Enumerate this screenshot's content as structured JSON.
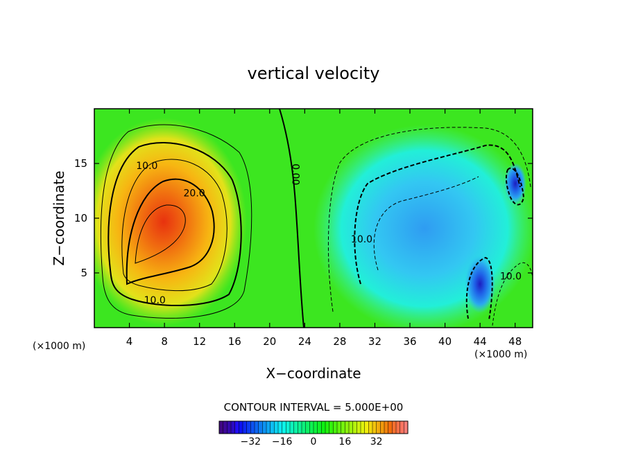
{
  "chart_data": {
    "type": "contour",
    "title": "vertical velocity",
    "xlabel": "X−coordinate",
    "ylabel": "Z−coordinate",
    "x_unit": "(×1000 m)",
    "y_unit": "(×1000 m)",
    "xlim": [
      0,
      50
    ],
    "ylim": [
      0,
      20
    ],
    "x_ticks": [
      4,
      8,
      12,
      16,
      20,
      24,
      28,
      32,
      36,
      40,
      44,
      48
    ],
    "y_ticks": [
      5,
      10,
      15
    ],
    "contour_interval_text": "CONTOUR INTERVAL = 5.000E+00",
    "contour_interval": 5,
    "contour_labels": [
      {
        "text": "10.0",
        "x": 6.0,
        "z": 14.5
      },
      {
        "text": "20.0",
        "x": 11.4,
        "z": 12.0
      },
      {
        "text": "10.0",
        "x": 6.9,
        "z": 2.2
      },
      {
        "text": "0.00",
        "x": 22.6,
        "z": 14.0
      },
      {
        "text": "10.0",
        "x": 30.5,
        "z": 7.8
      },
      {
        "text": "10.0",
        "x": 47.5,
        "z": 4.4
      }
    ],
    "features": [
      {
        "kind": "updraft",
        "center_x": 8,
        "center_z": 9.5,
        "max": 32
      },
      {
        "kind": "downdraft",
        "center_x": 36,
        "center_z": 9,
        "min": -15
      },
      {
        "kind": "downdraft",
        "center_x": 43.5,
        "center_z": 4,
        "min": -32
      },
      {
        "kind": "downdraft",
        "center_x": 47,
        "center_z": 13,
        "min": -28
      }
    ],
    "colorbar": {
      "ticks": [
        -32,
        -16,
        0,
        16,
        32
      ],
      "tick_labels": [
        "−32",
        "−16",
        "0",
        "16",
        "32"
      ],
      "range": [
        -48,
        48
      ]
    },
    "grid": false
  }
}
